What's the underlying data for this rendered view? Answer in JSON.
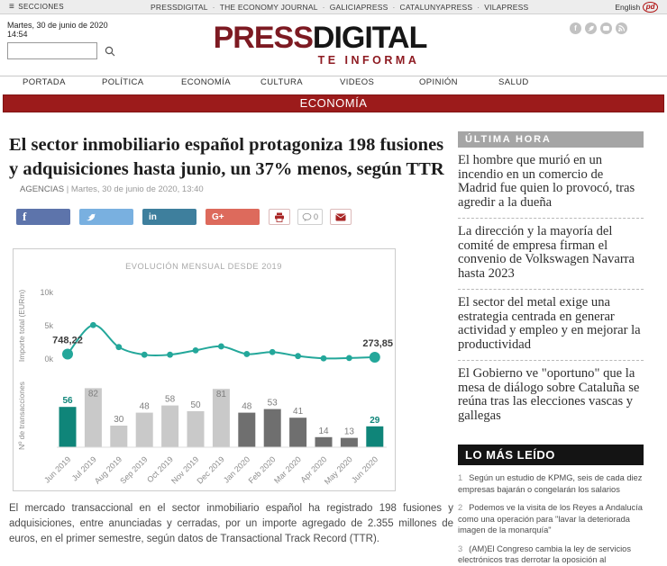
{
  "topbar": {
    "menu_label": "SECCIONES",
    "sites": [
      "PRESSDIGITAL",
      "THE ECONOMY JOURNAL",
      "GALICIAPRESS",
      "CATALUNYAPRESS",
      "VILAPRESS"
    ],
    "separator": "·",
    "language": "English",
    "lang_logo": "pd"
  },
  "header": {
    "date": "Martes, 30 de junio de 2020",
    "time": "14:54",
    "logo_press": "PRESS",
    "logo_digital": "DIGITAL",
    "tagline": "TE INFORMA",
    "search_placeholder": ""
  },
  "nav": {
    "items": [
      "PORTADA",
      "POLÍTICA",
      "ECONOMÍA",
      "CULTURA",
      "VIDEOS",
      "OPINIÓN",
      "SALUD"
    ],
    "section_banner": "ECONOMÍA"
  },
  "article": {
    "title": "El sector inmobiliario español protagoniza 198 fusiones y adquisiciones hasta junio, un 37% menos, según TTR",
    "author": "AGENCIAS",
    "byline_separator": "|",
    "datetime": "Martes, 30 de junio de 2020, 13:40",
    "comment_count": "0",
    "body": "El mercado transaccional en el sector inmobiliario español ha registrado 198 fusiones y adquisiciones, entre anunciadas y cerradas, por un importe agregado de 2.355 millones de euros, en el primer semestre, según datos de Transactional Track Record (TTR)."
  },
  "share": {
    "facebook_glyph": "f",
    "linkedin_glyph": "in",
    "googleplus_glyph": "G+",
    "facebook_color": "#5d74ab",
    "twitter_color": "#79b0e0",
    "linkedin_color": "#3e7f9d",
    "googleplus_color": "#dd6a5c"
  },
  "chart_data": [
    {
      "type": "line",
      "title": "EVOLUCIÓN MENSUAL DESDE 2019",
      "x": [
        "Jun 2019",
        "Jul 2019",
        "Aug 2019",
        "Sep 2019",
        "Oct 2019",
        "Nov 2019",
        "Dec 2019",
        "Jan 2020",
        "Feb 2020",
        "Mar 2020",
        "Apr 2020",
        "May 2020",
        "Jun 2020"
      ],
      "values": [
        748.22,
        5100,
        1800,
        650,
        650,
        1300,
        1900,
        750,
        1050,
        450,
        100,
        150,
        273.85
      ],
      "ylabel": "Importe total (EURm)",
      "yticks": [
        {
          "label": "0k",
          "value": 0
        },
        {
          "label": "5k",
          "value": 5000
        },
        {
          "label": "10k",
          "value": 10000
        }
      ],
      "ylim": [
        0,
        10000
      ],
      "first_point_label": "748,22",
      "last_point_label": "273,85",
      "color": "#23a79a"
    },
    {
      "type": "bar",
      "categories": [
        "Jun 2019",
        "Jul 2019",
        "Aug 2019",
        "Sep 2019",
        "Oct 2019",
        "Nov 2019",
        "Dec 2019",
        "Jan 2020",
        "Feb 2020",
        "Mar 2020",
        "Apr 2020",
        "May 2020",
        "Jun 2020"
      ],
      "values": [
        56,
        82,
        30,
        48,
        58,
        50,
        81,
        48,
        53,
        41,
        14,
        13,
        29
      ],
      "ylabel": "Nº de transacciones",
      "bar_colors": [
        "#0f8579",
        "#c9c9c9",
        "#c9c9c9",
        "#c9c9c9",
        "#c9c9c9",
        "#c9c9c9",
        "#c9c9c9",
        "#6f6f6f",
        "#6f6f6f",
        "#6f6f6f",
        "#6f6f6f",
        "#6f6f6f",
        "#0f8579"
      ]
    }
  ],
  "sidebar": {
    "latest_title": "ÚLTIMA HORA",
    "latest_items": [
      "El hombre que murió en un incendio en un comercio de Madrid fue quien lo provocó, tras agredir a la dueña",
      "La dirección y la mayoría del comité de empresa firman el convenio de Volkswagen Navarra hasta 2023",
      "El sector del metal exige una estrategia centrada en generar actividad y empleo y en mejorar la productividad",
      "El Gobierno ve \"oportuno\" que la mesa de diálogo sobre Cataluña se reúna tras las elecciones vascas y gallegas"
    ],
    "most_read_title": "LO MÁS LEÍDO",
    "most_read_items": [
      {
        "num": "1",
        "text": "Según un estudio de KPMG, seis de cada diez empresas bajarán o congelarán los salarios"
      },
      {
        "num": "2",
        "text": "Podemos ve la visita de los Reyes a Andalucía como una operación para \"lavar la deteriorada imagen de la monarquía\""
      },
      {
        "num": "3",
        "text": "(AM)El Congreso cambia la ley de servicios electrónicos tras derrotar la oposición al"
      }
    ]
  }
}
